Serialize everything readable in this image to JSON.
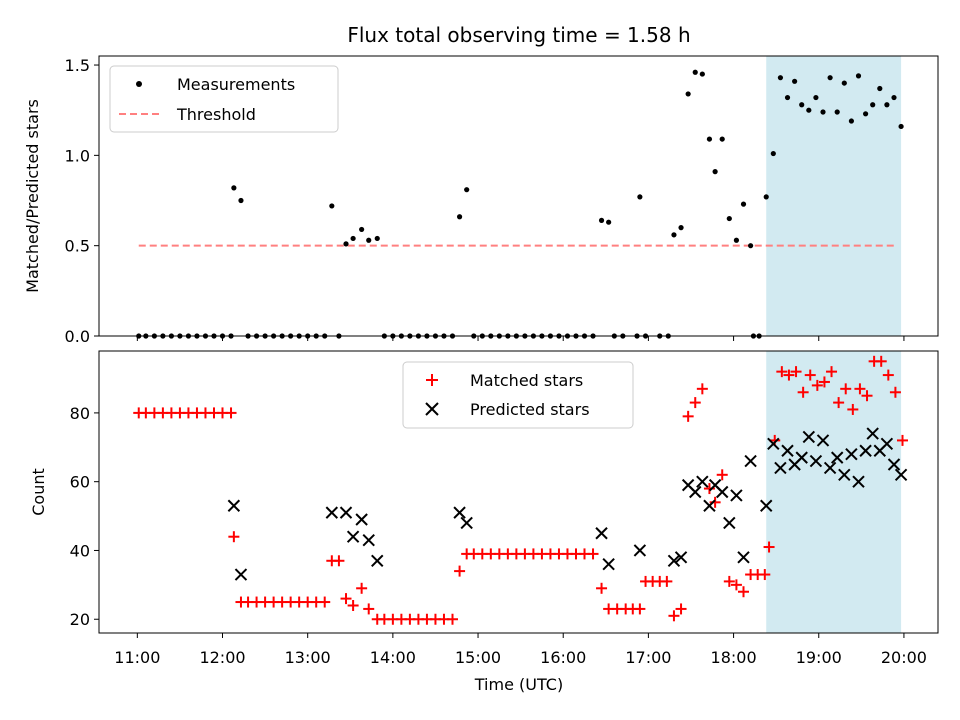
{
  "title": "Flux total observing time = 1.58 h",
  "colors": {
    "measurement": "#000000",
    "threshold": "#ff8080",
    "matched": "#ff0000",
    "predicted": "#000000",
    "highlight": "#add8e6"
  },
  "chart_data": [
    {
      "type": "scatter",
      "id": "top",
      "ylabel": "Matched/Predicted stars",
      "xlabel": "",
      "ylim": [
        0,
        1.55
      ],
      "yticks": [
        0.0,
        0.5,
        1.0,
        1.5
      ],
      "ytick_labels": [
        "0.0",
        "0.5",
        "1.0",
        "1.5"
      ],
      "legend_position": "upper-left",
      "highlight_span": [
        "18:23",
        "19:58"
      ],
      "series": [
        {
          "name": "Measurements",
          "marker": "dot",
          "points": [
            [
              "11:01",
              0
            ],
            [
              "11:06",
              0
            ],
            [
              "11:12",
              0
            ],
            [
              "11:18",
              0
            ],
            [
              "11:24",
              0
            ],
            [
              "11:30",
              0
            ],
            [
              "11:36",
              0
            ],
            [
              "11:42",
              0
            ],
            [
              "11:48",
              0
            ],
            [
              "11:54",
              0
            ],
            [
              "12:00",
              0
            ],
            [
              "12:06",
              0
            ],
            [
              "12:08",
              0.82
            ],
            [
              "12:13",
              0.75
            ],
            [
              "12:18",
              0
            ],
            [
              "12:24",
              0
            ],
            [
              "12:30",
              0
            ],
            [
              "12:36",
              0
            ],
            [
              "12:42",
              0
            ],
            [
              "12:48",
              0
            ],
            [
              "12:54",
              0
            ],
            [
              "13:00",
              0
            ],
            [
              "13:06",
              0
            ],
            [
              "13:12",
              0
            ],
            [
              "13:22",
              0
            ],
            [
              "13:17",
              0.72
            ],
            [
              "13:27",
              0.51
            ],
            [
              "13:32",
              0.54
            ],
            [
              "13:38",
              0.59
            ],
            [
              "13:43",
              0.53
            ],
            [
              "13:49",
              0.54
            ],
            [
              "13:54",
              0
            ],
            [
              "14:00",
              0
            ],
            [
              "14:06",
              0
            ],
            [
              "14:12",
              0
            ],
            [
              "14:18",
              0
            ],
            [
              "14:24",
              0
            ],
            [
              "14:30",
              0
            ],
            [
              "14:36",
              0
            ],
            [
              "14:42",
              0
            ],
            [
              "14:47",
              0.66
            ],
            [
              "14:52",
              0.81
            ],
            [
              "14:57",
              0
            ],
            [
              "15:03",
              0
            ],
            [
              "15:09",
              0
            ],
            [
              "15:15",
              0
            ],
            [
              "15:21",
              0
            ],
            [
              "15:27",
              0
            ],
            [
              "15:33",
              0
            ],
            [
              "15:39",
              0
            ],
            [
              "15:45",
              0
            ],
            [
              "15:51",
              0
            ],
            [
              "15:57",
              0
            ],
            [
              "16:03",
              0
            ],
            [
              "16:09",
              0
            ],
            [
              "16:15",
              0
            ],
            [
              "16:21",
              0
            ],
            [
              "16:27",
              0.64
            ],
            [
              "16:32",
              0.63
            ],
            [
              "16:36",
              0
            ],
            [
              "16:42",
              0
            ],
            [
              "16:52",
              0
            ],
            [
              "16:58",
              0
            ],
            [
              "17:08",
              0
            ],
            [
              "17:14",
              0
            ],
            [
              "16:54",
              0.77
            ],
            [
              "17:18",
              0.56
            ],
            [
              "17:23",
              0.6
            ],
            [
              "17:28",
              1.34
            ],
            [
              "17:33",
              1.46
            ],
            [
              "17:38",
              1.45
            ],
            [
              "17:43",
              1.09
            ],
            [
              "17:47",
              0.91
            ],
            [
              "17:52",
              1.09
            ],
            [
              "17:57",
              0.65
            ],
            [
              "18:02",
              0.53
            ],
            [
              "18:07",
              0.73
            ],
            [
              "18:12",
              0.5
            ],
            [
              "18:14",
              0
            ],
            [
              "18:18",
              0
            ],
            [
              "18:23",
              0.77
            ],
            [
              "18:28",
              1.01
            ],
            [
              "18:33",
              1.43
            ],
            [
              "18:38",
              1.32
            ],
            [
              "18:43",
              1.41
            ],
            [
              "18:48",
              1.28
            ],
            [
              "18:53",
              1.25
            ],
            [
              "18:58",
              1.32
            ],
            [
              "19:03",
              1.24
            ],
            [
              "19:08",
              1.43
            ],
            [
              "19:13",
              1.24
            ],
            [
              "19:18",
              1.4
            ],
            [
              "19:23",
              1.19
            ],
            [
              "19:28",
              1.44
            ],
            [
              "19:33",
              1.23
            ],
            [
              "19:38",
              1.28
            ],
            [
              "19:43",
              1.37
            ],
            [
              "19:48",
              1.28
            ],
            [
              "19:53",
              1.32
            ],
            [
              "19:58",
              1.16
            ]
          ]
        },
        {
          "name": "Threshold",
          "marker": "dashed-line",
          "points": [
            [
              "11:01",
              0.5
            ],
            [
              "19:55",
              0.5
            ]
          ]
        }
      ]
    },
    {
      "type": "scatter",
      "id": "bottom",
      "ylabel": "Count",
      "xlabel": "Time (UTC)",
      "ylim": [
        16,
        98
      ],
      "yticks": [
        20,
        40,
        60,
        80
      ],
      "ytick_labels": [
        "20",
        "40",
        "60",
        "80"
      ],
      "legend_position": "upper-center",
      "highlight_span": [
        "18:23",
        "19:58"
      ],
      "xlim": [
        "10:33",
        "20:24"
      ],
      "xticks": [
        "11:00",
        "12:00",
        "13:00",
        "14:00",
        "15:00",
        "16:00",
        "17:00",
        "18:00",
        "19:00",
        "20:00"
      ],
      "series": [
        {
          "name": "Matched stars",
          "marker": "plus",
          "points": [
            [
              "11:01",
              80
            ],
            [
              "11:06",
              80
            ],
            [
              "11:12",
              80
            ],
            [
              "11:18",
              80
            ],
            [
              "11:24",
              80
            ],
            [
              "11:30",
              80
            ],
            [
              "11:36",
              80
            ],
            [
              "11:42",
              80
            ],
            [
              "11:48",
              80
            ],
            [
              "11:54",
              80
            ],
            [
              "12:00",
              80
            ],
            [
              "12:06",
              80
            ],
            [
              "12:08",
              44
            ],
            [
              "12:13",
              25
            ],
            [
              "12:18",
              25
            ],
            [
              "12:24",
              25
            ],
            [
              "12:30",
              25
            ],
            [
              "12:36",
              25
            ],
            [
              "12:42",
              25
            ],
            [
              "12:48",
              25
            ],
            [
              "12:54",
              25
            ],
            [
              "13:00",
              25
            ],
            [
              "13:06",
              25
            ],
            [
              "13:12",
              25
            ],
            [
              "13:17",
              37
            ],
            [
              "13:22",
              37
            ],
            [
              "13:27",
              26
            ],
            [
              "13:32",
              24
            ],
            [
              "13:38",
              29
            ],
            [
              "13:43",
              23
            ],
            [
              "13:49",
              20
            ],
            [
              "13:54",
              20
            ],
            [
              "14:00",
              20
            ],
            [
              "14:06",
              20
            ],
            [
              "14:12",
              20
            ],
            [
              "14:18",
              20
            ],
            [
              "14:24",
              20
            ],
            [
              "14:30",
              20
            ],
            [
              "14:36",
              20
            ],
            [
              "14:42",
              20
            ],
            [
              "14:47",
              34
            ],
            [
              "14:52",
              39
            ],
            [
              "14:57",
              39
            ],
            [
              "15:03",
              39
            ],
            [
              "15:09",
              39
            ],
            [
              "15:15",
              39
            ],
            [
              "15:21",
              39
            ],
            [
              "15:27",
              39
            ],
            [
              "15:33",
              39
            ],
            [
              "15:39",
              39
            ],
            [
              "15:45",
              39
            ],
            [
              "15:51",
              39
            ],
            [
              "15:57",
              39
            ],
            [
              "16:03",
              39
            ],
            [
              "16:09",
              39
            ],
            [
              "16:15",
              39
            ],
            [
              "16:21",
              39
            ],
            [
              "16:27",
              29
            ],
            [
              "16:32",
              23
            ],
            [
              "16:38",
              23
            ],
            [
              "16:44",
              23
            ],
            [
              "16:49",
              23
            ],
            [
              "16:54",
              23
            ],
            [
              "16:58",
              31
            ],
            [
              "17:03",
              31
            ],
            [
              "17:08",
              31
            ],
            [
              "17:13",
              31
            ],
            [
              "17:18",
              21
            ],
            [
              "17:23",
              23
            ],
            [
              "17:28",
              79
            ],
            [
              "17:33",
              83
            ],
            [
              "17:38",
              87
            ],
            [
              "17:43",
              58
            ],
            [
              "17:47",
              54
            ],
            [
              "17:52",
              62
            ],
            [
              "17:57",
              31
            ],
            [
              "18:02",
              30
            ],
            [
              "18:07",
              28
            ],
            [
              "18:12",
              33
            ],
            [
              "18:17",
              33
            ],
            [
              "18:22",
              33
            ],
            [
              "18:25",
              41
            ],
            [
              "18:29",
              72
            ],
            [
              "18:34",
              92
            ],
            [
              "18:39",
              91
            ],
            [
              "18:44",
              92
            ],
            [
              "18:49",
              86
            ],
            [
              "18:54",
              91
            ],
            [
              "18:59",
              88
            ],
            [
              "19:04",
              89
            ],
            [
              "19:09",
              92
            ],
            [
              "19:14",
              83
            ],
            [
              "19:19",
              87
            ],
            [
              "19:24",
              81
            ],
            [
              "19:29",
              87
            ],
            [
              "19:34",
              85
            ],
            [
              "19:39",
              95
            ],
            [
              "19:44",
              95
            ],
            [
              "19:49",
              91
            ],
            [
              "19:54",
              86
            ],
            [
              "19:59",
              72
            ]
          ]
        },
        {
          "name": "Predicted stars",
          "marker": "x",
          "points": [
            [
              "12:08",
              53
            ],
            [
              "12:13",
              33
            ],
            [
              "13:17",
              51
            ],
            [
              "13:27",
              51
            ],
            [
              "13:32",
              44
            ],
            [
              "13:38",
              49
            ],
            [
              "13:43",
              43
            ],
            [
              "13:49",
              37
            ],
            [
              "14:47",
              51
            ],
            [
              "14:52",
              48
            ],
            [
              "16:27",
              45
            ],
            [
              "16:32",
              36
            ],
            [
              "16:54",
              40
            ],
            [
              "17:18",
              37
            ],
            [
              "17:23",
              38
            ],
            [
              "17:28",
              59
            ],
            [
              "17:33",
              57
            ],
            [
              "17:38",
              60
            ],
            [
              "17:43",
              53
            ],
            [
              "17:47",
              59
            ],
            [
              "17:52",
              57
            ],
            [
              "17:57",
              48
            ],
            [
              "18:02",
              56
            ],
            [
              "18:07",
              38
            ],
            [
              "18:12",
              66
            ],
            [
              "18:23",
              53
            ],
            [
              "18:28",
              71
            ],
            [
              "18:33",
              64
            ],
            [
              "18:38",
              69
            ],
            [
              "18:43",
              65
            ],
            [
              "18:48",
              67
            ],
            [
              "18:53",
              73
            ],
            [
              "18:58",
              66
            ],
            [
              "19:03",
              72
            ],
            [
              "19:08",
              64
            ],
            [
              "19:13",
              67
            ],
            [
              "19:18",
              62
            ],
            [
              "19:23",
              68
            ],
            [
              "19:28",
              60
            ],
            [
              "19:33",
              69
            ],
            [
              "19:38",
              74
            ],
            [
              "19:43",
              69
            ],
            [
              "19:48",
              71
            ],
            [
              "19:53",
              65
            ],
            [
              "19:58",
              62
            ]
          ]
        }
      ]
    }
  ]
}
